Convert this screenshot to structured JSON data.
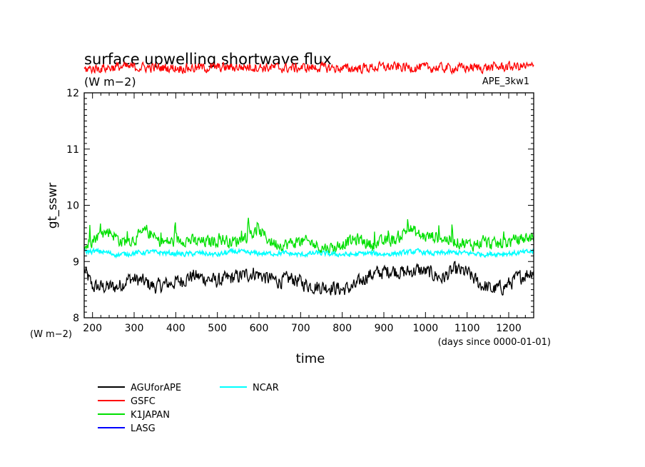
{
  "chart_data": {
    "type": "line",
    "title": "surface upwelling shortwave flux",
    "units_label": "(W m−2)",
    "run_label": "APE_3kw1",
    "ylabel": "gt_sswr",
    "xlabel": "time",
    "xunits_label": "(days since 0000-01-01)",
    "yunits_label": "(W m−2)",
    "xlim": [
      180,
      1260
    ],
    "ylim": [
      8,
      12
    ],
    "xticks": [
      200,
      300,
      400,
      500,
      600,
      700,
      800,
      900,
      1000,
      1100,
      1200
    ],
    "yticks": [
      8,
      9,
      10,
      11,
      12
    ],
    "grid": false,
    "legend_position": "bottom-left",
    "series": [
      {
        "name": "AGUforAPE",
        "color": "#000000",
        "mean": 8.62,
        "amplitude": 0.18,
        "x": [
          180,
          200,
          230,
          260,
          290,
          320,
          350,
          380,
          410,
          440,
          470,
          500,
          530,
          560,
          590,
          620,
          650,
          680,
          710,
          740,
          770,
          800,
          830,
          860,
          890,
          920,
          950,
          980,
          1010,
          1040,
          1070,
          1100,
          1130,
          1160,
          1190,
          1220,
          1250,
          1260
        ],
        "y": [
          8.85,
          8.55,
          8.55,
          8.55,
          8.7,
          8.65,
          8.55,
          8.6,
          8.65,
          8.75,
          8.7,
          8.65,
          8.7,
          8.75,
          8.8,
          8.7,
          8.65,
          8.7,
          8.6,
          8.55,
          8.55,
          8.5,
          8.55,
          8.75,
          8.8,
          8.85,
          8.8,
          8.85,
          8.8,
          8.7,
          8.85,
          8.8,
          8.6,
          8.5,
          8.55,
          8.7,
          8.8,
          8.85
        ]
      },
      {
        "name": "GSFC",
        "color": "#ff0000",
        "mean": 12.45,
        "amplitude": 0.12,
        "x": [
          180,
          260,
          340,
          420,
          500,
          580,
          660,
          740,
          820,
          900,
          980,
          1060,
          1140,
          1220,
          1260
        ],
        "y": [
          12.42,
          12.46,
          12.45,
          12.44,
          12.45,
          12.46,
          12.44,
          12.45,
          12.43,
          12.46,
          12.45,
          12.44,
          12.45,
          12.47,
          12.46
        ]
      },
      {
        "name": "K1JAPAN",
        "color": "#00e000",
        "mean": 9.32,
        "amplitude": 0.22,
        "x": [
          180,
          210,
          240,
          270,
          300,
          330,
          360,
          390,
          420,
          450,
          480,
          510,
          540,
          570,
          600,
          630,
          660,
          690,
          720,
          750,
          780,
          810,
          840,
          870,
          900,
          930,
          960,
          990,
          1020,
          1050,
          1080,
          1110,
          1140,
          1170,
          1200,
          1230,
          1260
        ],
        "y": [
          9.2,
          9.4,
          9.5,
          9.3,
          9.35,
          9.5,
          9.3,
          9.3,
          9.35,
          9.3,
          9.3,
          9.35,
          9.3,
          9.4,
          9.5,
          9.3,
          9.25,
          9.3,
          9.3,
          9.2,
          9.2,
          9.3,
          9.35,
          9.25,
          9.3,
          9.35,
          9.55,
          9.4,
          9.4,
          9.35,
          9.3,
          9.25,
          9.3,
          9.25,
          9.3,
          9.35,
          9.4
        ]
      },
      {
        "name": "LASG",
        "color": "#0000ff",
        "mean": null,
        "amplitude": null,
        "x": [],
        "y": []
      },
      {
        "name": "NCAR",
        "color": "#00ffff",
        "mean": 9.15,
        "amplitude": 0.06,
        "x": [
          180,
          220,
          260,
          300,
          340,
          380,
          420,
          460,
          500,
          540,
          580,
          620,
          660,
          700,
          740,
          780,
          820,
          860,
          900,
          940,
          980,
          1020,
          1060,
          1100,
          1140,
          1180,
          1220,
          1260
        ],
        "y": [
          9.18,
          9.18,
          9.12,
          9.15,
          9.17,
          9.15,
          9.13,
          9.15,
          9.12,
          9.18,
          9.15,
          9.14,
          9.15,
          9.12,
          9.15,
          9.13,
          9.12,
          9.15,
          9.13,
          9.15,
          9.18,
          9.14,
          9.16,
          9.15,
          9.13,
          9.14,
          9.15,
          9.18
        ]
      }
    ]
  }
}
